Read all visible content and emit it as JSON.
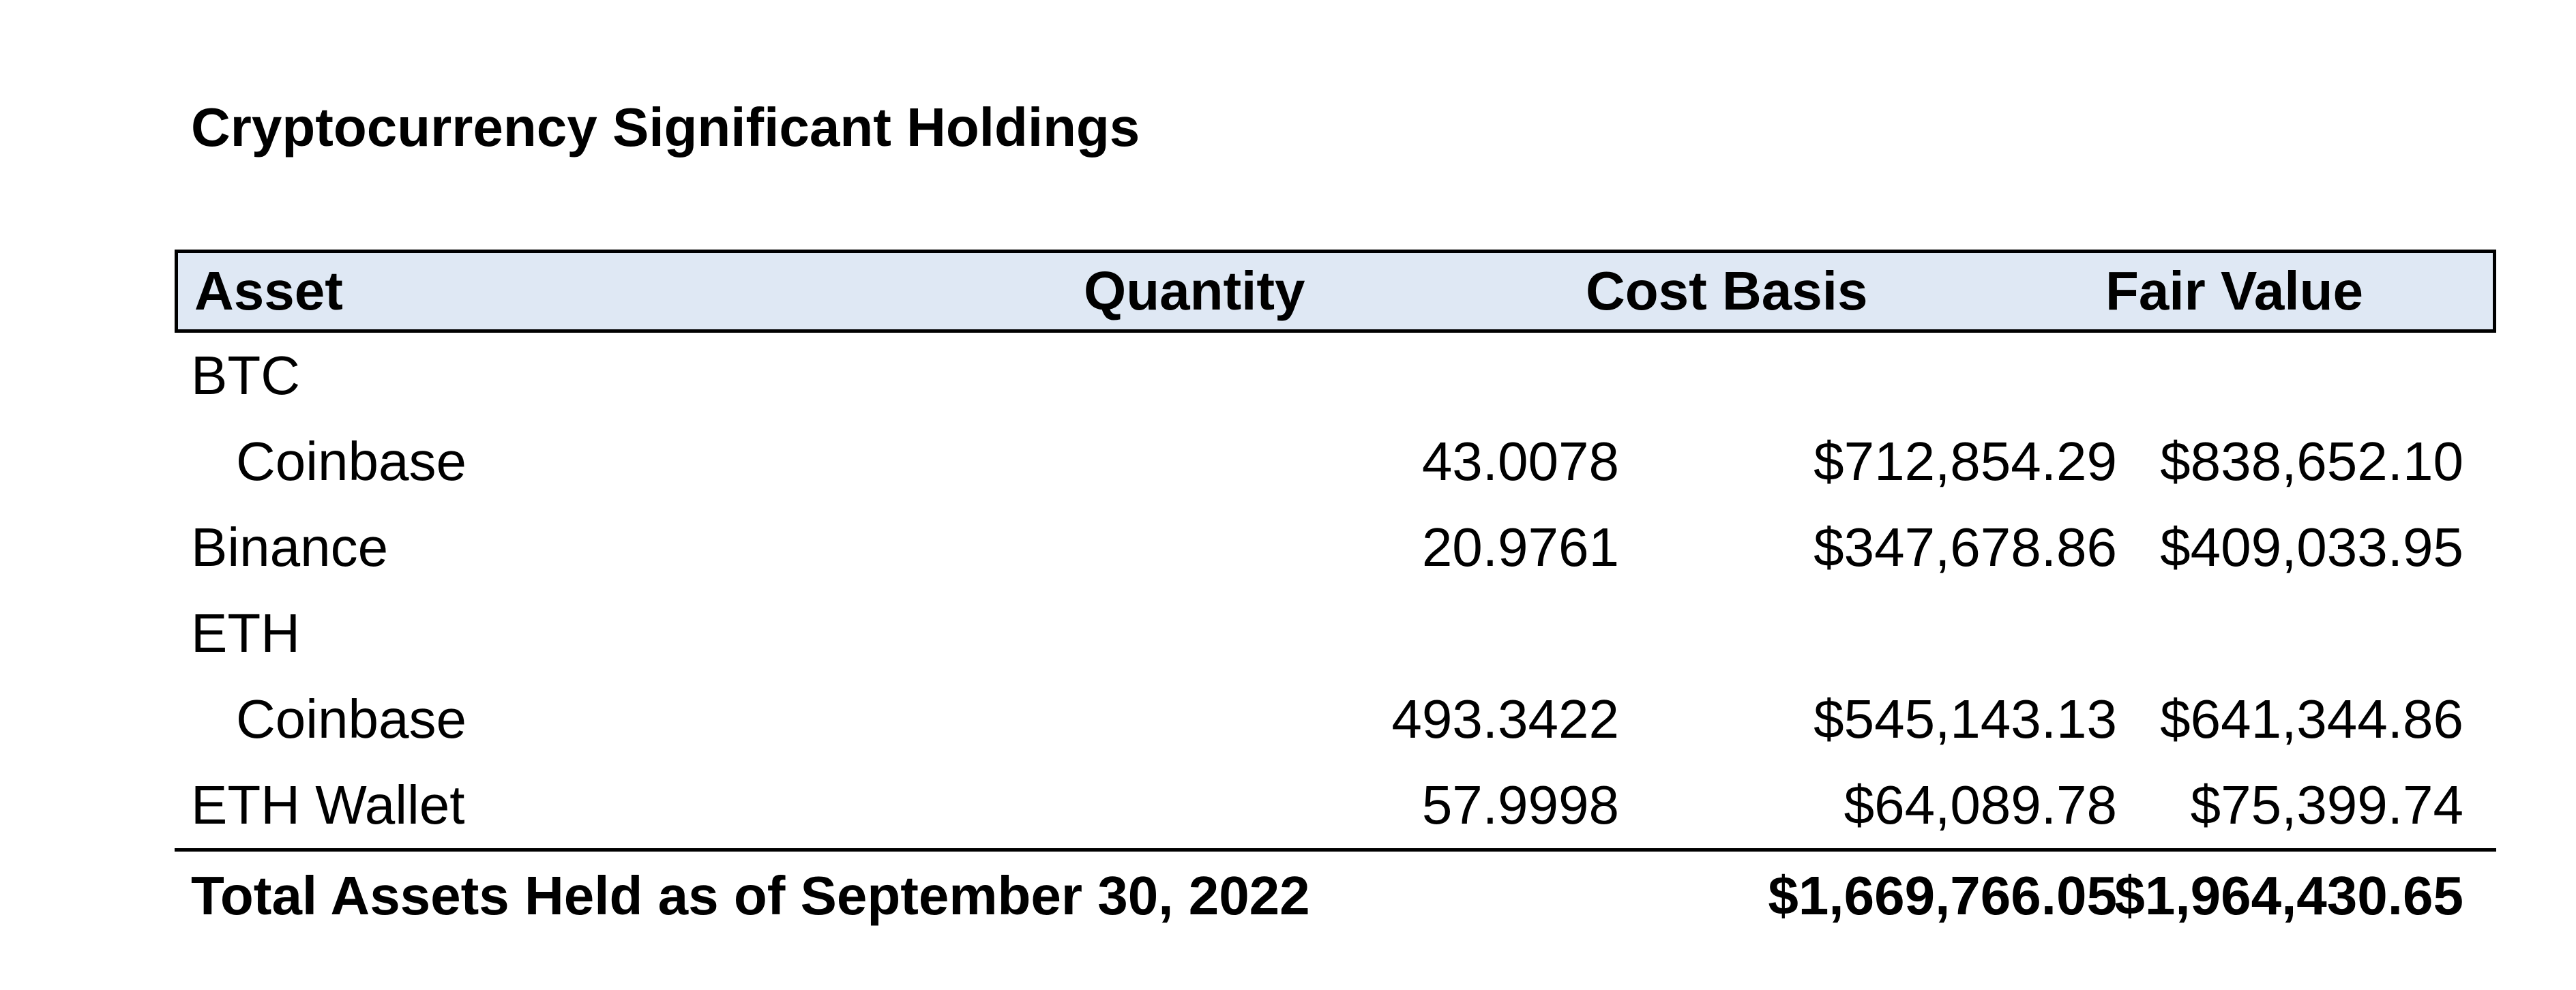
{
  "title": "Cryptocurrency Significant Holdings",
  "columns": {
    "asset": "Asset",
    "quantity": "Quantity",
    "cost_basis": "Cost Basis",
    "fair_value": "Fair Value"
  },
  "rows": [
    {
      "asset": "BTC",
      "quantity": "",
      "cost_basis": "",
      "fair_value": ""
    },
    {
      "asset": "Coinbase",
      "quantity": "43.0078",
      "cost_basis": "$712,854.29",
      "fair_value": "$838,652.10"
    },
    {
      "asset": "Binance",
      "quantity": "20.9761",
      "cost_basis": "$347,678.86",
      "fair_value": "$409,033.95"
    },
    {
      "asset": "ETH",
      "quantity": "",
      "cost_basis": "",
      "fair_value": ""
    },
    {
      "asset": "Coinbase",
      "quantity": "493.3422",
      "cost_basis": "$545,143.13",
      "fair_value": "$641,344.86"
    },
    {
      "asset": "ETH Wallet",
      "quantity": "57.9998",
      "cost_basis": "$64,089.78",
      "fair_value": "$75,399.74"
    }
  ],
  "total": {
    "label": "Total Assets Held as of September 30, 2022",
    "cost_basis": "$1,669,766.05",
    "fair_value": "$1,964,430.65"
  },
  "colors": {
    "header_background": "#dfe8f4",
    "border": "#000000"
  }
}
